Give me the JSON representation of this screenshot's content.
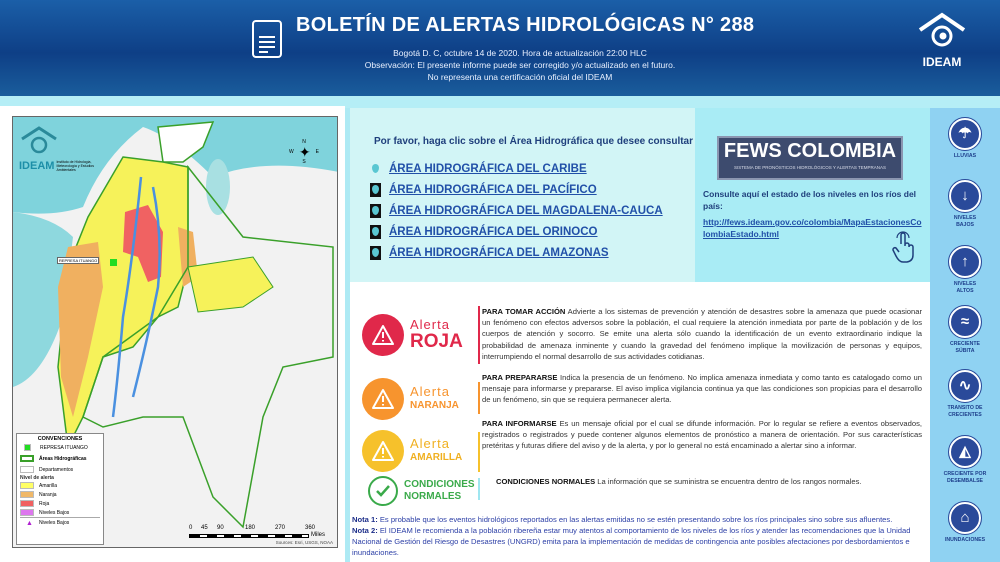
{
  "header": {
    "title": "BOLETÍN DE ALERTAS HIDROLÓGICAS N° 288",
    "line1": "Bogotá D. C, octubre 14 de 2020. Hora de actualización  22:00 HLC",
    "line2": "Observación: El presente informe puede ser corregido y/o actualizado en el futuro.",
    "line3": "No representa una certificación oficial del IDEAM",
    "logo": "IDEAM"
  },
  "map": {
    "logo": "IDEAM",
    "logo_sub": "Instituto de Hidrología, Meteorología y Estudios Ambientales",
    "dam_label": "REPRESA ITUANGO",
    "compass": {
      "n": "N",
      "s": "S",
      "e": "E",
      "w": "W"
    },
    "legend": {
      "title": "CONVENCIONES",
      "items": [
        {
          "label": "REPRESA ITUANGO",
          "color": "#22dd22"
        },
        {
          "label": "Áreas Hidrográficas",
          "color": "#3aa02a"
        },
        {
          "label": "Departamentos",
          "color": "#cccccc"
        }
      ],
      "level_title": "Nivel de alerta",
      "levels": [
        {
          "label": "Amarilla",
          "color": "#ffff66"
        },
        {
          "label": "Naranja",
          "color": "#f0b868"
        },
        {
          "label": "Roja",
          "color": "#f06060"
        },
        {
          "label": "Niveles Bajos",
          "color": "#dd77ee"
        }
      ],
      "triangle": "Niveles Bajos"
    },
    "scale": {
      "ticks": [
        "0",
        "45",
        "90",
        "180",
        "270",
        "360"
      ],
      "unit": "Miles"
    },
    "sources": "Sources: Esri, USGS, NOAA"
  },
  "areas": {
    "prompt": "Por favor, haga clic sobre el Área Hidrográfica que desee consultar",
    "items": [
      "ÁREA HIDROGRÁFICA DEL CARIBE",
      "ÁREA HIDROGRÁFICA DEL PACÍFICO",
      "ÁREA HIDROGRÁFICA DEL MAGDALENA-CAUCA",
      "ÁREA HIDROGRÁFICA DEL ORINOCO",
      "ÁREA HIDROGRÁFICA DEL AMAZONAS"
    ]
  },
  "fews": {
    "logo": "FEWS COLOMBIA",
    "logo_sub": "SISTEMA DE PRONÓSTICOS HIDROLÓGICOS Y ALERTAS TEMPRANAS",
    "consult": "Consulte aquí el estado de los niveles en los ríos del país:",
    "link": "http://fews.ideam.gov.co/colombia/MapaEstacionesColombiaEstado.html"
  },
  "alerts": [
    {
      "word": "Alerta",
      "level": "ROJA",
      "color": "#e0284a",
      "heading": "PARA TOMAR ACCIÓN",
      "text": " Advierte a los sistemas de prevención y atención de desastres sobre la amenaza que puede ocasionar un fenómeno con efectos adversos sobre la población, el cual requiere la atención inmediata por parte de la población y de los cuerpos de atención y socorro. Se emite una alerta sólo cuando la identificación de un evento extraordinario indique la probabilidad de amenaza inminente y cuando la gravedad del fenómeno implique la movilización de personas y equipos, interrumpiendo el normal desarrollo de sus actividades cotidianas."
    },
    {
      "word": "Alerta",
      "level": "NARANJA",
      "color": "#f7942e",
      "heading": "PARA PREPARARSE",
      "text": " Indica la presencia de un fenómeno. No implica amenaza inmediata y como tanto es catalogado como un mensaje para informarse y prepararse. El aviso implica vigilancia continua ya que las condiciones son propicias para el desarrollo de un fenómeno, sin que se requiera permanecer alerta."
    },
    {
      "word": "Alerta",
      "level": "AMARILLA",
      "color": "#f6c12b",
      "heading": "PARA INFORMARSE",
      "text": " Es un mensaje oficial por el cual se difunde información. Por lo regular se refiere a eventos observados, registrados o registrados y puede contener algunos elementos de pronóstico a manera de orientación. Por sus características pretéritas y futuras difiere del aviso y de la alerta, y por lo general no está encaminado a alertar sino a informar."
    },
    {
      "word": "CONDICIONES",
      "level": "NORMALES",
      "color": "#3aaa4a",
      "heading": "CONDICIONES NORMALES",
      "text": " La información que se suministra se encuentra dentro de los rangos normales."
    }
  ],
  "notes": [
    {
      "label": "Nota 1:",
      "text": " Es probable que los eventos hidrológicos reportados en las alertas emitidas no se estén presentando sobre los ríos principales sino sobre sus afluentes."
    },
    {
      "label": "Nota 2:",
      "text": " El IDEAM le recomienda a la población ribereña estar muy atentos al comportamiento de los niveles de los ríos y atender las recomendaciones que la Unidad Nacional de Gestión del Riesgo de Desastres (UNGRD) emita para la implementación de medidas de contingencia ante posibles afectaciones por desbordamientos e inundaciones."
    }
  ],
  "sidebar": [
    {
      "label": "LLUVIAS",
      "icon": "rain-icon"
    },
    {
      "label": "NIVELES BAJOS",
      "icon": "low-levels-icon"
    },
    {
      "label": "NIVELES ALTOS",
      "icon": "high-levels-icon"
    },
    {
      "label": "CRECIENTE SÚBITA",
      "icon": "flash-flood-icon"
    },
    {
      "label": "TRANSITO DE CRECIENTES",
      "icon": "flood-routing-icon"
    },
    {
      "label": "CRECIENTE POR DESEMBALSE",
      "icon": "dam-release-icon"
    },
    {
      "label": "INUNDACIONES",
      "icon": "flood-house-icon"
    }
  ]
}
